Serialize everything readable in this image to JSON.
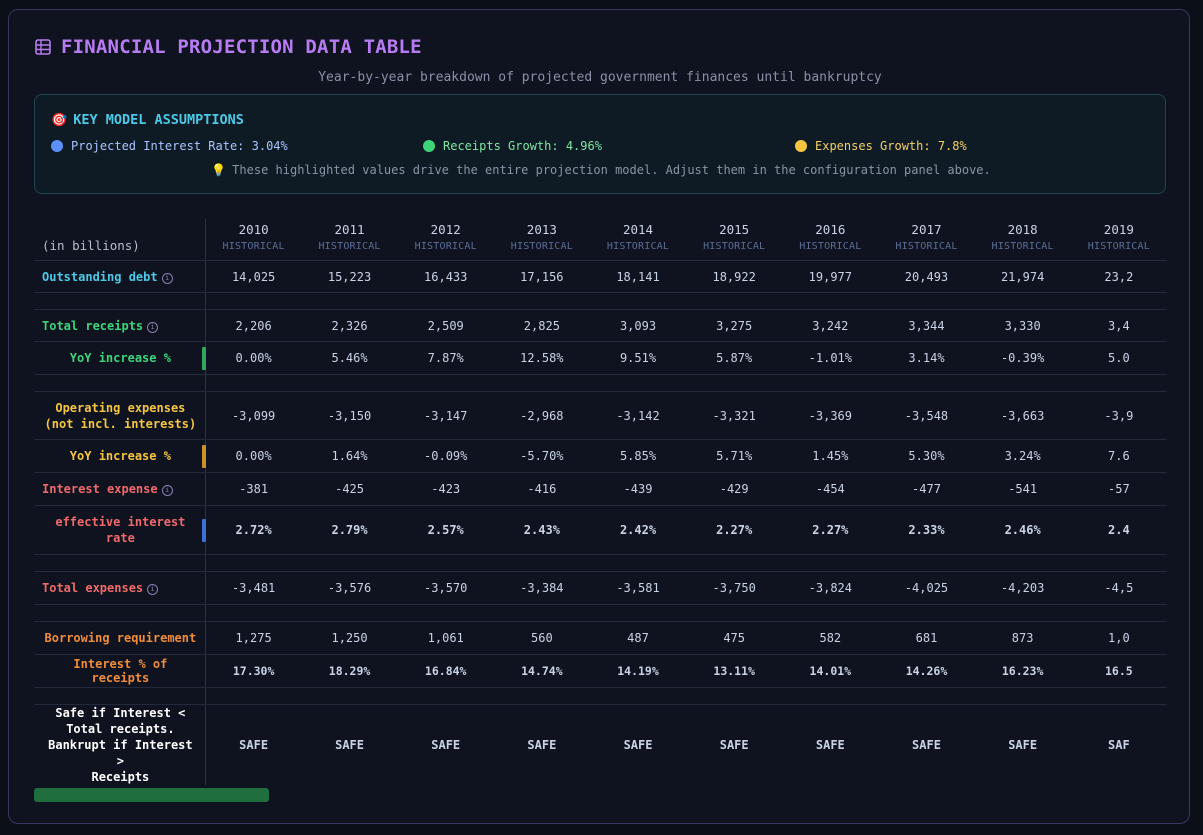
{
  "header": {
    "title": "FINANCIAL PROJECTION DATA TABLE",
    "subtitle": "Year-by-year breakdown of projected government finances until bankruptcy"
  },
  "assumptions": {
    "title": "KEY MODEL ASSUMPTIONS",
    "title_emoji": "🎯",
    "items": [
      {
        "label": "Projected Interest Rate: 3.04%",
        "color": "#5b8ff9"
      },
      {
        "label": "Receipts Growth: 4.96%",
        "color": "#3fd479"
      },
      {
        "label": "Expenses Growth: 7.8%",
        "color": "#f5c542"
      }
    ],
    "note_emoji": "💡",
    "note": "These highlighted values drive the entire projection model. Adjust them in the configuration panel above."
  },
  "table": {
    "unit_label": "(in billions)",
    "years": [
      "2010",
      "2011",
      "2012",
      "2013",
      "2014",
      "2015",
      "2016",
      "2017",
      "2018",
      "2019"
    ],
    "year_tags": [
      "HISTORICAL",
      "HISTORICAL",
      "HISTORICAL",
      "HISTORICAL",
      "HISTORICAL",
      "HISTORICAL",
      "HISTORICAL",
      "HISTORICAL",
      "HISTORICAL",
      "HISTORICAL"
    ],
    "rows": {
      "debt": {
        "label": "Outstanding debt",
        "values": [
          "14,025",
          "15,223",
          "16,433",
          "17,156",
          "18,141",
          "18,922",
          "19,977",
          "20,493",
          "21,974",
          "23,2"
        ]
      },
      "receipts": {
        "label": "Total receipts",
        "values": [
          "2,206",
          "2,326",
          "2,509",
          "2,825",
          "3,093",
          "3,275",
          "3,242",
          "3,344",
          "3,330",
          "3,4"
        ]
      },
      "receipts_yoy": {
        "label": "YoY increase %",
        "values": [
          "0.00%",
          "5.46%",
          "7.87%",
          "12.58%",
          "9.51%",
          "5.87%",
          "-1.01%",
          "3.14%",
          "-0.39%",
          "5.0"
        ]
      },
      "opex": {
        "label_line1": "Operating expenses",
        "label_line2": "(not incl. interests)",
        "values": [
          "-3,099",
          "-3,150",
          "-3,147",
          "-2,968",
          "-3,142",
          "-3,321",
          "-3,369",
          "-3,548",
          "-3,663",
          "-3,9"
        ]
      },
      "opex_yoy": {
        "label": "YoY increase %",
        "values": [
          "0.00%",
          "1.64%",
          "-0.09%",
          "-5.70%",
          "5.85%",
          "5.71%",
          "1.45%",
          "5.30%",
          "3.24%",
          "7.6"
        ]
      },
      "interest": {
        "label": "Interest expense",
        "values": [
          "-381",
          "-425",
          "-423",
          "-416",
          "-439",
          "-429",
          "-454",
          "-477",
          "-541",
          "-57"
        ]
      },
      "eff_rate": {
        "label_line1": "effective interest",
        "label_line2": "rate",
        "values": [
          "2.72%",
          "2.79%",
          "2.57%",
          "2.43%",
          "2.42%",
          "2.27%",
          "2.27%",
          "2.33%",
          "2.46%",
          "2.4"
        ]
      },
      "total_exp": {
        "label": "Total expenses",
        "values": [
          "-3,481",
          "-3,576",
          "-3,570",
          "-3,384",
          "-3,581",
          "-3,750",
          "-3,824",
          "-4,025",
          "-4,203",
          "-4,5"
        ]
      },
      "borrow": {
        "label": "Borrowing requirement",
        "values": [
          "1,275",
          "1,250",
          "1,061",
          "560",
          "487",
          "475",
          "582",
          "681",
          "873",
          "1,0"
        ]
      },
      "int_pct": {
        "label": "Interest % of receipts",
        "values": [
          "17.30%",
          "18.29%",
          "16.84%",
          "14.74%",
          "14.19%",
          "13.11%",
          "14.01%",
          "14.26%",
          "16.23%",
          "16.5"
        ]
      },
      "safe": {
        "label_line1": "Safe if Interest <",
        "label_line2": "Total receipts.",
        "label_line3": "Bankrupt if Interest >",
        "label_line4": "Receipts",
        "values": [
          "SAFE",
          "SAFE",
          "SAFE",
          "SAFE",
          "SAFE",
          "SAFE",
          "SAFE",
          "SAFE",
          "SAFE",
          "SAF"
        ]
      }
    }
  },
  "colors": {
    "title": "#b77cf2",
    "debt": "#4cc9e6",
    "receipts": "#3fd479",
    "expenses": "#f5c542",
    "interest": "#f06a6a",
    "borrow": "#f08c3a",
    "eff_bar": "#3d6fd6"
  }
}
